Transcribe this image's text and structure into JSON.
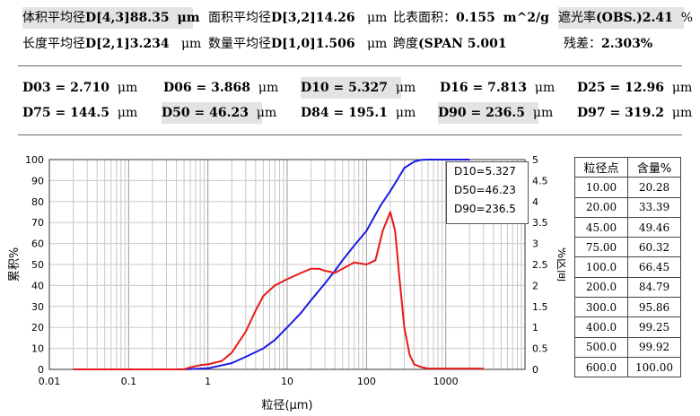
{
  "summary": {
    "row1": [
      {
        "label": "体积平均径",
        "value": "D[4,3]88.35",
        "unit": "μm"
      },
      {
        "label": "面积平均径",
        "value": "D[3,2]14.26",
        "unit": "μm"
      },
      {
        "label": "比表面积：",
        "value": "0.155",
        "unit": "m^2/g"
      },
      {
        "label": "遮光率",
        "value": "(OBS.)2.41",
        "unit": "%"
      }
    ],
    "row2": [
      {
        "label": "长度平均径",
        "value": "D[2,1]3.234",
        "unit": "μm"
      },
      {
        "label": "数量平均径",
        "value": "D[1,0]1.506",
        "unit": "μm"
      },
      {
        "label": "跨度",
        "value": "(SPAN 5.001",
        "unit": ""
      },
      {
        "label": "残差：",
        "value": "2.303%",
        "unit": ""
      }
    ]
  },
  "percentiles": {
    "row1": [
      "D03 = 2.710",
      "D06 = 3.868",
      "D10 = 5.327",
      "D16 = 7.813",
      "D25 = 12.96"
    ],
    "row2": [
      "D75 = 144.5",
      "D50 = 46.23",
      "D84 = 195.1",
      "D90 = 236.5",
      "D97 = 319.2"
    ],
    "unit": "μm"
  },
  "legend": [
    "D10=5.327",
    "D50=46.23",
    "D90=236.5"
  ],
  "table": {
    "headers": [
      "粒径点",
      "含量%"
    ],
    "rows": [
      [
        "10.00",
        "20.28"
      ],
      [
        "20.00",
        "33.39"
      ],
      [
        "45.00",
        "49.46"
      ],
      [
        "75.00",
        "60.32"
      ],
      [
        "100.0",
        "66.45"
      ],
      [
        "200.0",
        "84.79"
      ],
      [
        "300.0",
        "95.86"
      ],
      [
        "400.0",
        "99.25"
      ],
      [
        "500.0",
        "99.92"
      ],
      [
        "600.0",
        "100.00"
      ]
    ]
  },
  "chart_data": {
    "type": "line",
    "xlabel": "粒径(μm)",
    "ylabel_left": "累积%",
    "ylabel_right": "%区间",
    "xscale": "log",
    "xlim": [
      0.01,
      10000
    ],
    "ylim_left": [
      0,
      100
    ],
    "ylim_right": [
      0,
      5
    ],
    "x_ticks": [
      "0.01",
      "0.1",
      "1",
      "10",
      "100",
      "1000"
    ],
    "y_ticks_left": [
      "0",
      "10",
      "20",
      "30",
      "40",
      "50",
      "60",
      "70",
      "80",
      "90",
      "100"
    ],
    "y_ticks_right": [
      "0",
      "0.5",
      "1",
      "1.5",
      "2",
      "2.5",
      "3",
      "3.5",
      "4",
      "4.5",
      "5"
    ],
    "colors": {
      "cumulative": "#1a1ae6",
      "interval": "#e61a1a"
    },
    "series": [
      {
        "name": "累积%",
        "axis": "left",
        "x": [
          0.02,
          0.5,
          1,
          2,
          3,
          5,
          7,
          10,
          15,
          20,
          30,
          40,
          50,
          70,
          100,
          150,
          200,
          250,
          300,
          400,
          500,
          600,
          2000
        ],
        "y": [
          0,
          0,
          0.5,
          3,
          6,
          10,
          14,
          20,
          27,
          33,
          41,
          47,
          52,
          59,
          66,
          78,
          85,
          91,
          96,
          99,
          99.9,
          100,
          100
        ]
      },
      {
        "name": "%区间",
        "axis": "right",
        "x": [
          0.02,
          0.5,
          0.6,
          0.8,
          1,
          1.5,
          2,
          3,
          4,
          5,
          7,
          10,
          15,
          20,
          25,
          30,
          40,
          50,
          70,
          100,
          130,
          160,
          200,
          230,
          260,
          300,
          350,
          400,
          500,
          600,
          1000,
          2000,
          3000
        ],
        "y": [
          0,
          0,
          0.05,
          0.1,
          0.12,
          0.2,
          0.4,
          0.9,
          1.4,
          1.75,
          2.0,
          2.15,
          2.3,
          2.4,
          2.4,
          2.35,
          2.3,
          2.4,
          2.55,
          2.5,
          2.6,
          3.3,
          3.75,
          3.3,
          2.2,
          1.0,
          0.35,
          0.12,
          0.05,
          0.02,
          0.02,
          0.02,
          0.02
        ]
      }
    ]
  }
}
